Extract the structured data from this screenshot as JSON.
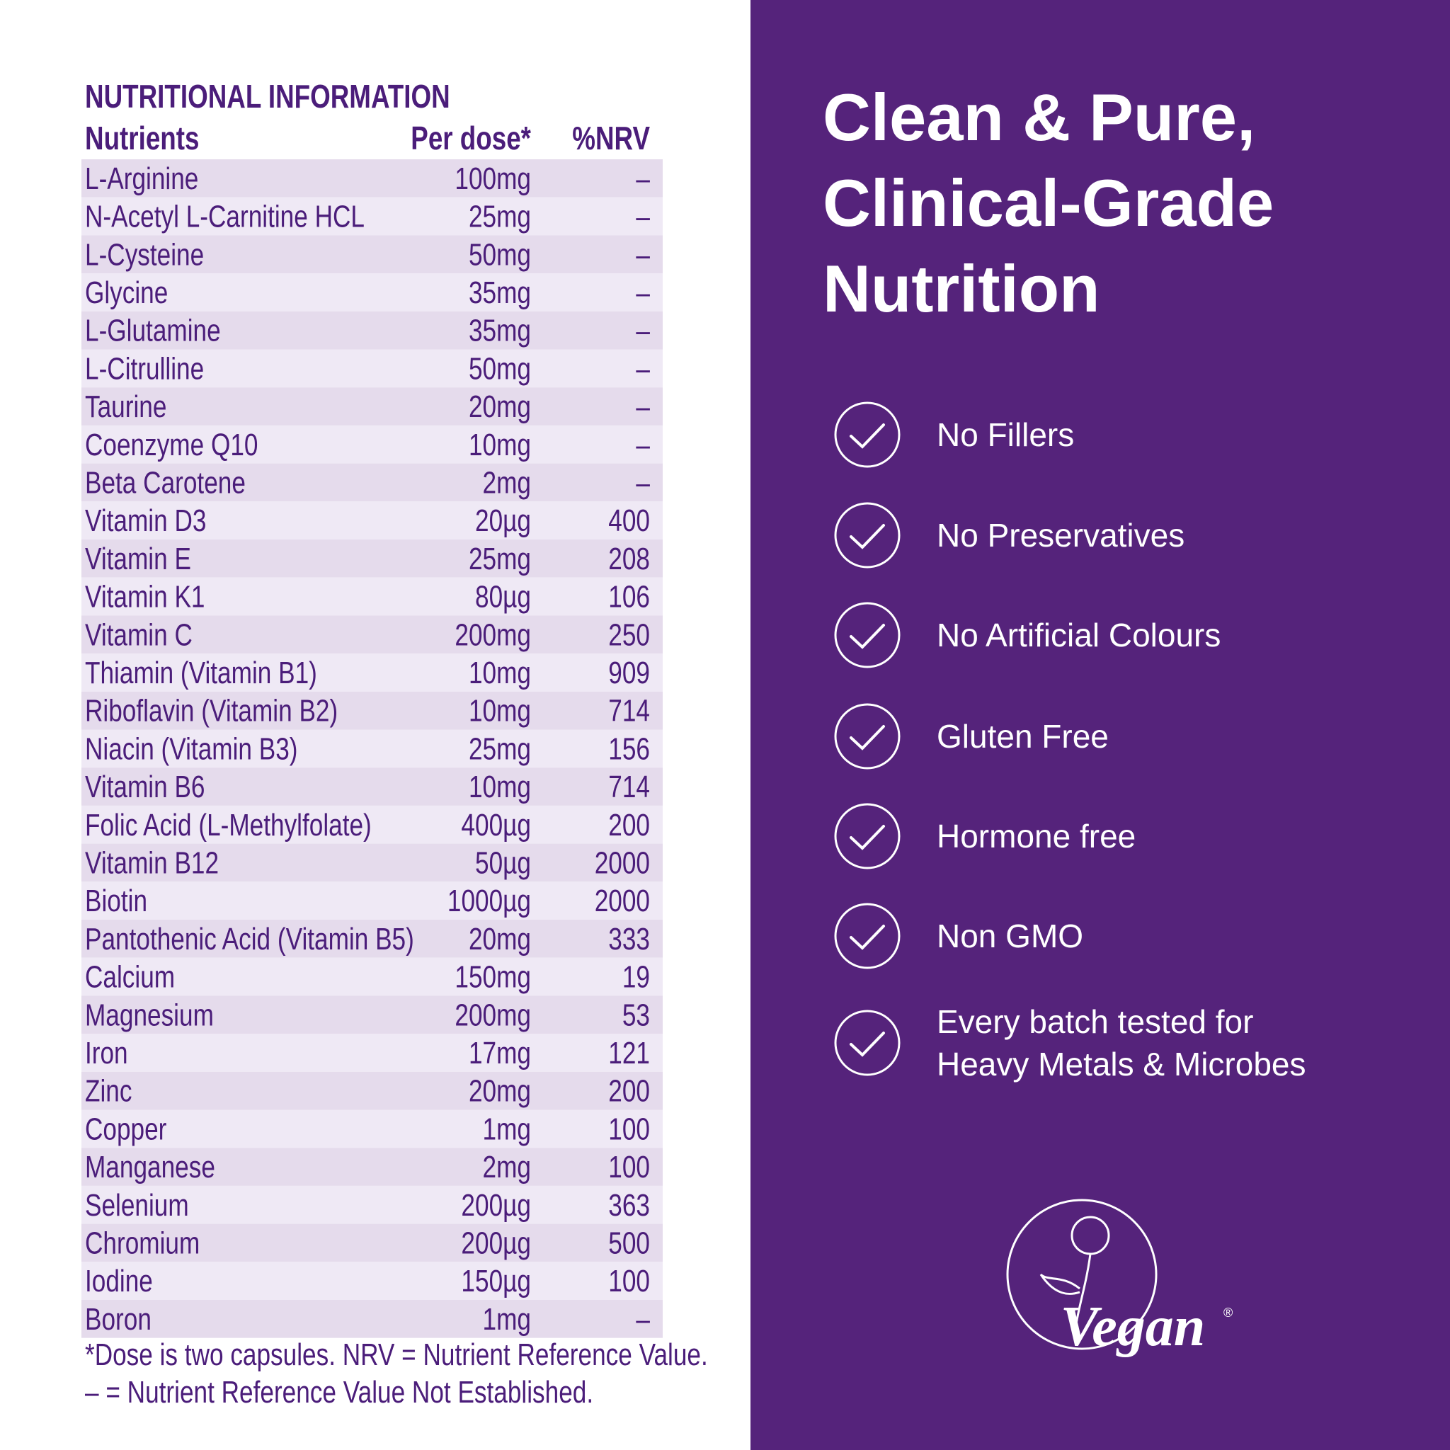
{
  "table": {
    "title": "NUTRITIONAL INFORMATION",
    "headers": [
      "Nutrients",
      "Per dose*",
      "%NRV"
    ],
    "rows": [
      [
        "L-Arginine",
        "100mg",
        "–"
      ],
      [
        "N-Acetyl L-Carnitine HCL",
        "25mg",
        "–"
      ],
      [
        "L-Cysteine",
        "50mg",
        "–"
      ],
      [
        "Glycine",
        "35mg",
        "–"
      ],
      [
        "L-Glutamine",
        "35mg",
        "–"
      ],
      [
        "L-Citrulline",
        "50mg",
        "–"
      ],
      [
        "Taurine",
        "20mg",
        "–"
      ],
      [
        "Coenzyme Q10",
        "10mg",
        "–"
      ],
      [
        "Beta Carotene",
        "2mg",
        "–"
      ],
      [
        "Vitamin D3",
        "20µg",
        "400"
      ],
      [
        "Vitamin E",
        "25mg",
        "208"
      ],
      [
        "Vitamin K1",
        "80µg",
        "106"
      ],
      [
        "Vitamin C",
        "200mg",
        "250"
      ],
      [
        "Thiamin (Vitamin B1)",
        "10mg",
        "909"
      ],
      [
        "Riboflavin (Vitamin B2)",
        "10mg",
        "714"
      ],
      [
        "Niacin (Vitamin B3)",
        "25mg",
        "156"
      ],
      [
        "Vitamin B6",
        "10mg",
        "714"
      ],
      [
        "Folic Acid (L-Methylfolate)",
        "400µg",
        "200"
      ],
      [
        "Vitamin B12",
        "50µg",
        "2000"
      ],
      [
        "Biotin",
        "1000µg",
        "2000"
      ],
      [
        "Pantothenic Acid (Vitamin B5)",
        "20mg",
        "333"
      ],
      [
        "Calcium",
        "150mg",
        "19"
      ],
      [
        "Magnesium",
        "200mg",
        "53"
      ],
      [
        "Iron",
        "17mg",
        "121"
      ],
      [
        "Zinc",
        "20mg",
        "200"
      ],
      [
        "Copper",
        "1mg",
        "100"
      ],
      [
        "Manganese",
        "2mg",
        "100"
      ],
      [
        "Selenium",
        "200µg",
        "363"
      ],
      [
        "Chromium",
        "200µg",
        "500"
      ],
      [
        "Iodine",
        "150µg",
        "100"
      ],
      [
        "Boron",
        "1mg",
        "–"
      ]
    ],
    "footnotes": [
      "*Dose is two capsules. NRV = Nutrient Reference Value.",
      "– = Nutrient Reference Value Not Established."
    ]
  },
  "panel": {
    "heading": [
      "Clean & Pure,",
      "Clinical-Grade",
      "Nutrition"
    ],
    "features": [
      [
        "No Fillers"
      ],
      [
        "No Preservatives"
      ],
      [
        "No Artificial Colours"
      ],
      [
        "Gluten Free"
      ],
      [
        "Hormone free"
      ],
      [
        "Non GMO"
      ],
      [
        "Every batch tested for",
        "Heavy Metals & Microbes"
      ]
    ],
    "logo": {
      "text": "Vegan",
      "mark": "®"
    }
  }
}
